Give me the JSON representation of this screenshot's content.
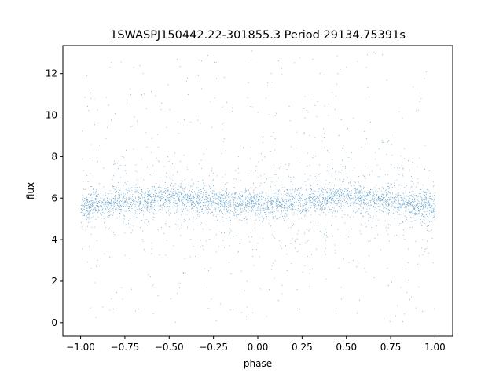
{
  "chart_data": {
    "type": "scatter",
    "title": "1SWASPJ150442.22-301855.3 Period 29134.75391s",
    "xlabel": "phase",
    "ylabel": "flux",
    "xlim": [
      -1.1,
      1.1
    ],
    "ylim": [
      -0.65,
      13.35
    ],
    "xticks": [
      -1.0,
      -0.75,
      -0.5,
      -0.25,
      0.0,
      0.25,
      0.5,
      0.75,
      1.0
    ],
    "xtick_labels": [
      "−1.00",
      "−0.75",
      "−0.50",
      "−0.25",
      "0.00",
      "0.25",
      "0.50",
      "0.75",
      "1.00"
    ],
    "yticks": [
      0,
      2,
      4,
      6,
      8,
      10,
      12
    ],
    "ytick_labels": [
      "0",
      "2",
      "4",
      "6",
      "8",
      "10",
      "12"
    ],
    "grid": false,
    "point_color": "#1f77b4",
    "series": [
      {
        "x_range": [
          -1.0,
          1.0
        ],
        "y_range": [
          0.0,
          13.1
        ],
        "trend_phase": [
          -1.0,
          -0.75,
          -0.5,
          -0.25,
          0.0,
          0.25,
          0.5,
          0.75,
          1.0
        ],
        "trend_flux": [
          5.6,
          5.85,
          6.05,
          5.85,
          5.65,
          5.85,
          6.05,
          5.85,
          5.6
        ]
      }
    ]
  }
}
